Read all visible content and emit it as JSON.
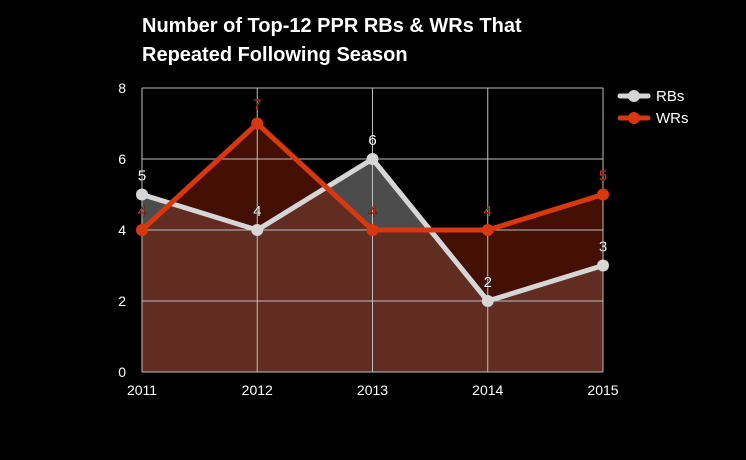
{
  "chart_data": {
    "type": "area",
    "title_lines": [
      "Number of Top-12 PPR RBs & WRs That",
      "Repeated Following Season"
    ],
    "categories": [
      "2011",
      "2012",
      "2013",
      "2014",
      "2015"
    ],
    "ylim": [
      0,
      8
    ],
    "yticks": [
      0,
      2,
      4,
      6,
      8
    ],
    "grid": true,
    "legend_position": "top-right",
    "series": [
      {
        "name": "RBs",
        "values": [
          5,
          4,
          6,
          2,
          3
        ],
        "color": "#d6d6d6",
        "fill": "#7a7a7a",
        "label_color": "#ffffff"
      },
      {
        "name": "WRs",
        "values": [
          4,
          7,
          4,
          4,
          5
        ],
        "color": "#d8380f",
        "fill": "#6e1a08",
        "label_color": "#c8331a"
      }
    ]
  }
}
